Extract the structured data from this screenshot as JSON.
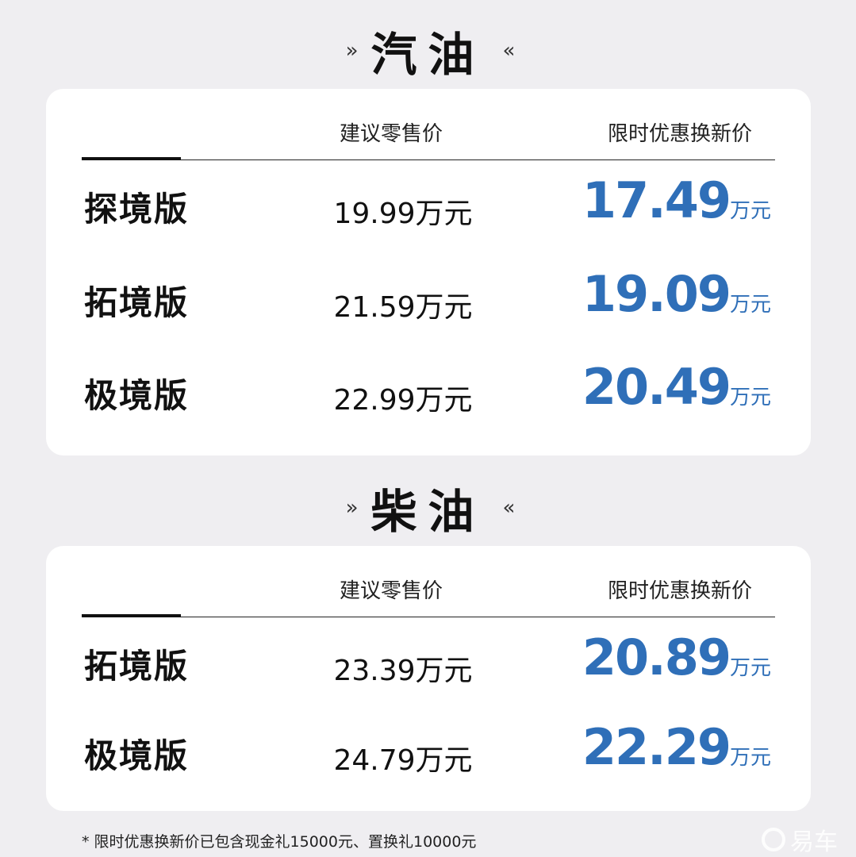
{
  "sections": [
    {
      "title": "汽油",
      "headers": {
        "retail": "建议零售价",
        "promo": "限时优惠换新价"
      },
      "rows": [
        {
          "name": "探境版",
          "retail": "19.99万元",
          "promo": "17.49",
          "unit": "万元"
        },
        {
          "name": "拓境版",
          "retail": "21.59万元",
          "promo": "19.09",
          "unit": "万元"
        },
        {
          "name": "极境版",
          "retail": "22.99万元",
          "promo": "20.49",
          "unit": "万元"
        }
      ]
    },
    {
      "title": "柴油",
      "headers": {
        "retail": "建议零售价",
        "promo": "限时优惠换新价"
      },
      "rows": [
        {
          "name": "拓境版",
          "retail": "23.39万元",
          "promo": "20.89",
          "unit": "万元"
        },
        {
          "name": "极境版",
          "retail": "24.79万元",
          "promo": "22.29",
          "unit": "万元"
        }
      ]
    }
  ],
  "chevrons": {
    "left": "»",
    "right": "«"
  },
  "footnote": "* 限时优惠换新价已包含现金礼15000元、置换礼10000元",
  "watermark": "易车",
  "colors": {
    "accent": "#2f6fb8",
    "background": "#efeef1"
  }
}
